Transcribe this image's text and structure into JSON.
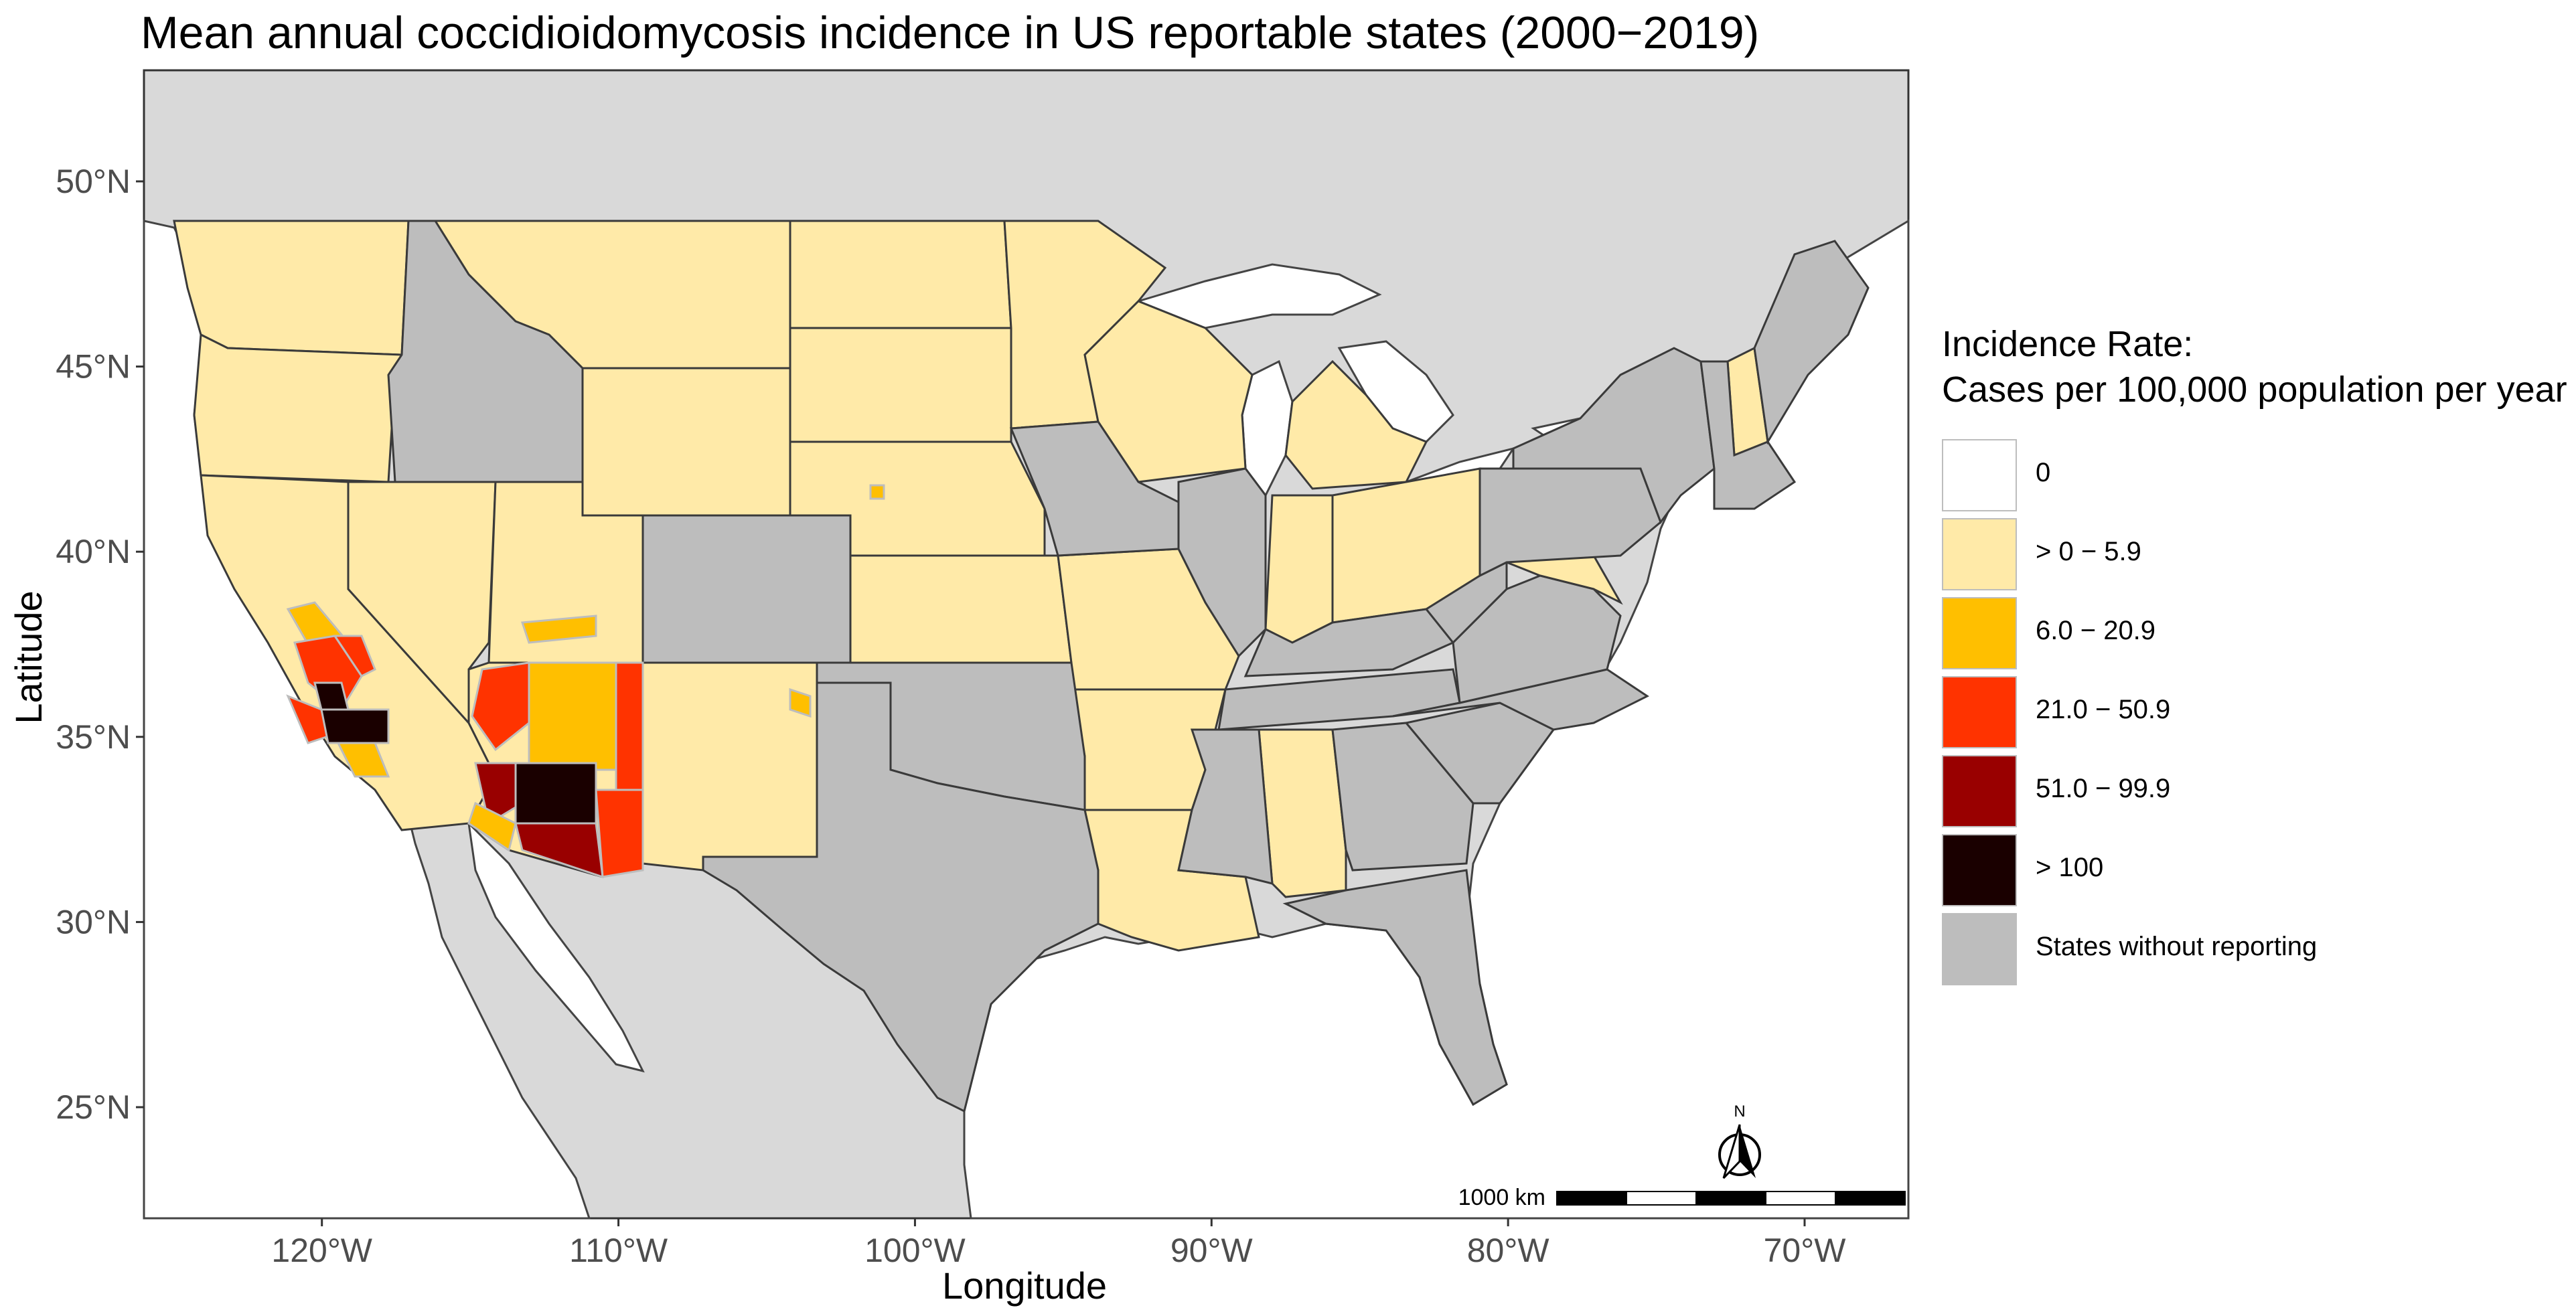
{
  "title": "Mean annual coccidioidomycosis incidence in US reportable states (2000−2019)",
  "axes": {
    "x_title": "Longitude",
    "y_title": "Latitude",
    "x_ticks": [
      "120°W",
      "110°W",
      "100°W",
      "90°W",
      "80°W",
      "70°W"
    ],
    "y_ticks": [
      "50°N",
      "45°N",
      "40°N",
      "35°N",
      "30°N",
      "25°N"
    ],
    "lon_range": [
      -126,
      -66.5
    ],
    "lat_range": [
      22,
      53
    ]
  },
  "legend": {
    "title_line1": "Incidence Rate:",
    "title_line2": "Cases per 100,000 population per year",
    "items": [
      {
        "label": "0",
        "color": "#ffffff"
      },
      {
        "label": "> 0 − 5.9",
        "color": "#ffeaa8"
      },
      {
        "label": "6.0 − 20.9",
        "color": "#ffbf00"
      },
      {
        "label": "21.0 − 50.9",
        "color": "#ff3300"
      },
      {
        "label": "51.0 − 99.9",
        "color": "#990000"
      },
      {
        "label": "> 100",
        "color": "#1a0000"
      },
      {
        "label": "States without reporting",
        "color": "#bdbdbd"
      }
    ]
  },
  "colors": {
    "background_land": "#d9d9d9",
    "non_reporting_state": "#bdbdbd",
    "water": "#ffffff",
    "county_border": "#bdbdbd",
    "state_border": "#3a3a3a"
  },
  "scale_bar": {
    "label": "1000 km"
  },
  "north_arrow": {
    "label": "N"
  }
}
